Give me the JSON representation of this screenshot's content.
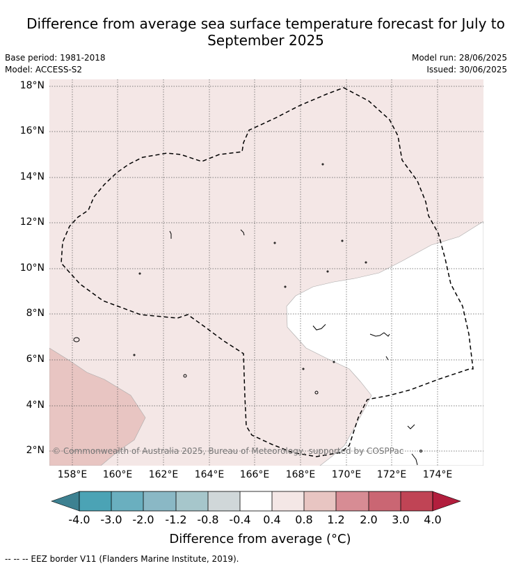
{
  "title": "Difference from average sea surface temperature forecast for July to September 2025",
  "meta": {
    "base_period": "Base period: 1981-2018",
    "model": "Model: ACCESS-S2",
    "model_run": "Model run: 28/06/2025",
    "issued": "Issued: 30/06/2025"
  },
  "map": {
    "lat_labels": [
      "18°N",
      "16°N",
      "14°N",
      "12°N",
      "10°N",
      "8°N",
      "6°N",
      "4°N",
      "2°N"
    ],
    "lon_labels": [
      "158°E",
      "160°E",
      "162°E",
      "164°E",
      "166°E",
      "168°E",
      "170°E",
      "172°E",
      "174°E"
    ],
    "copyright": "© Commonwealth of Australia 2025, Bureau of Meteorology, supported by COSPPac"
  },
  "colorbar": {
    "title": "Difference from average (°C)",
    "ticks": [
      "-4.0",
      "-3.0",
      "-2.0",
      "-1.2",
      "-0.8",
      "-0.4",
      "0.4",
      "0.8",
      "1.2",
      "2.0",
      "3.0",
      "4.0"
    ],
    "colors": [
      "#3d8191",
      "#4ba3b5",
      "#6aafbf",
      "#8ab8c5",
      "#a6c6cb",
      "#d0d7d9",
      "#ffffff",
      "#f4e7e6",
      "#e8c5c2",
      "#d78c94",
      "#ca6673",
      "#c04455",
      "#b21e3d"
    ],
    "active_bands": {
      "white": "#ffffff",
      "light_pink": "#f4e7e6",
      "pink": "#e8c5c2"
    }
  },
  "legend_note": "--  --  -- EEZ border V11 (Flanders Marine Institute, 2019)."
}
